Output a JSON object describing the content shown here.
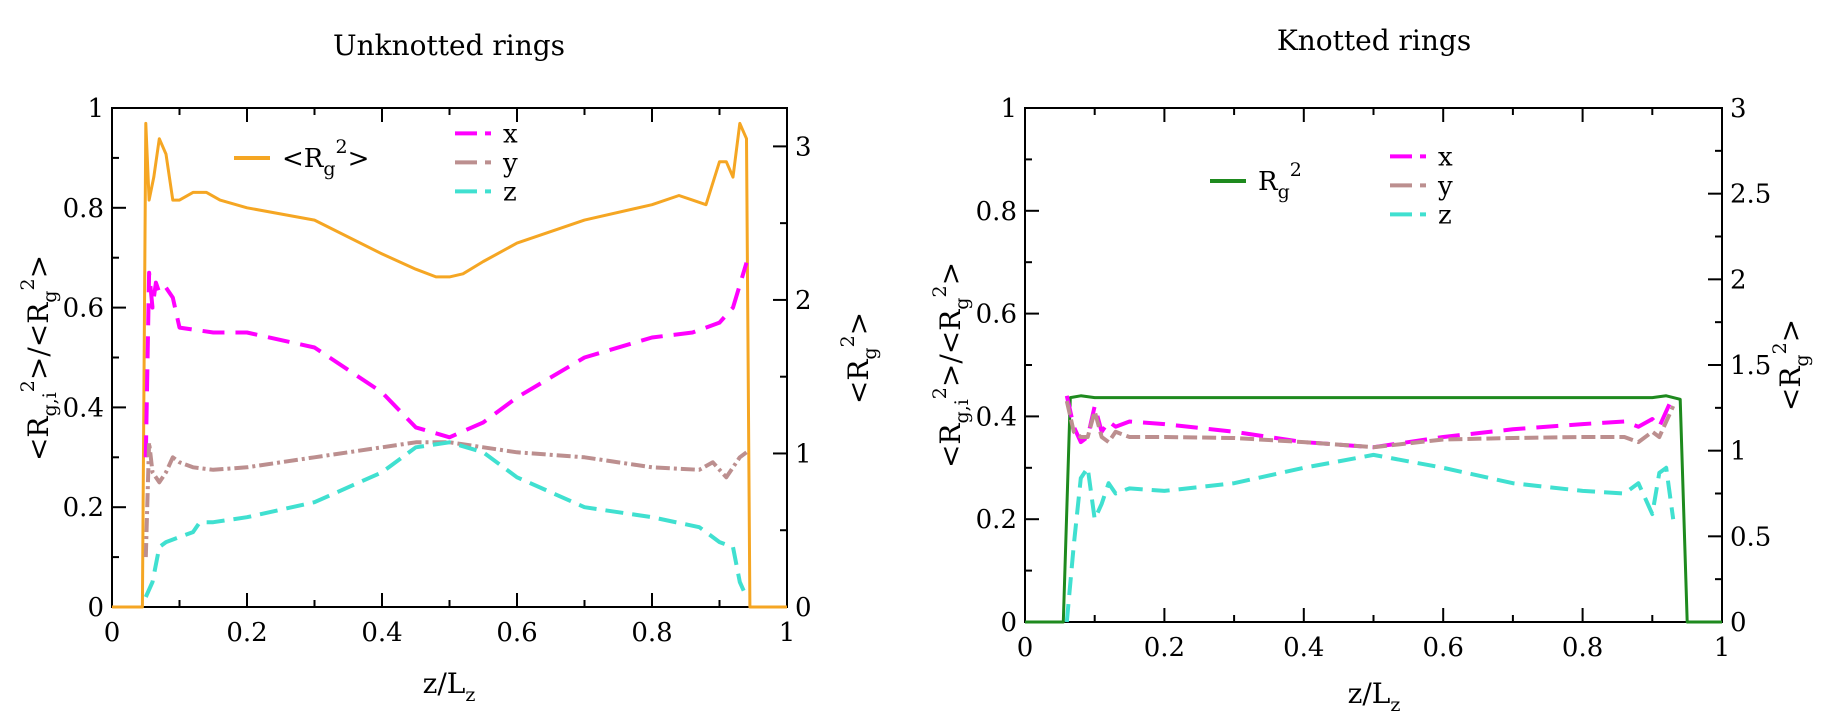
{
  "chart_data": [
    {
      "type": "line",
      "title": "Unknotted rings",
      "xlabel": {
        "text": "z/L",
        "sub": "z"
      },
      "ylabel": {
        "pre": "<R",
        "sub": "g,i",
        "sup": "2",
        "mid": ">/<R",
        "sub2": "g",
        "sup2": "2",
        "post": ">"
      },
      "y2label": {
        "pre": "<R",
        "sub": "g",
        "sup": "2",
        "post": ">"
      },
      "xlim": [
        0,
        1
      ],
      "ylim": [
        0,
        1
      ],
      "y2lim": [
        0,
        3.25
      ],
      "xticks": [
        "0",
        "0.2",
        "0.4",
        "0.6",
        "0.8",
        "1"
      ],
      "yticks": [
        "0",
        "0.2",
        "0.4",
        "0.6",
        "0.8",
        "1"
      ],
      "y2ticks": [
        "0",
        "1",
        "2",
        "3"
      ],
      "legend": [
        {
          "series": "Rg2",
          "pre": "<R",
          "sub": "g",
          "sup": "2",
          "post": ">"
        },
        {
          "series": "x",
          "text": "x"
        },
        {
          "series": "y",
          "text": "y"
        },
        {
          "series": "z",
          "text": "z"
        }
      ],
      "series": [
        {
          "name": "Rg2",
          "axis": "right",
          "color": "#f5a623",
          "dash": "",
          "x": [
            0,
            0.045,
            0.05,
            0.055,
            0.062,
            0.07,
            0.08,
            0.09,
            0.1,
            0.12,
            0.14,
            0.16,
            0.2,
            0.3,
            0.4,
            0.45,
            0.48,
            0.5,
            0.52,
            0.55,
            0.6,
            0.7,
            0.8,
            0.84,
            0.86,
            0.88,
            0.9,
            0.91,
            0.92,
            0.93,
            0.94,
            0.945,
            0.95,
            1
          ],
          "y": [
            0,
            0,
            3.15,
            2.65,
            2.8,
            3.05,
            2.95,
            2.65,
            2.65,
            2.7,
            2.7,
            2.65,
            2.6,
            2.52,
            2.3,
            2.2,
            2.15,
            2.15,
            2.17,
            2.25,
            2.37,
            2.52,
            2.62,
            2.68,
            2.65,
            2.62,
            2.9,
            2.9,
            2.8,
            3.15,
            3.05,
            0,
            0,
            0
          ]
        },
        {
          "name": "x",
          "axis": "left",
          "color": "#ff00ff",
          "dash": "22 11",
          "x": [
            0.05,
            0.055,
            0.06,
            0.065,
            0.07,
            0.08,
            0.09,
            0.1,
            0.15,
            0.2,
            0.3,
            0.4,
            0.45,
            0.5,
            0.55,
            0.6,
            0.7,
            0.8,
            0.86,
            0.9,
            0.92,
            0.94
          ],
          "y": [
            0.3,
            0.67,
            0.6,
            0.65,
            0.63,
            0.64,
            0.62,
            0.56,
            0.55,
            0.55,
            0.52,
            0.43,
            0.36,
            0.34,
            0.37,
            0.42,
            0.5,
            0.54,
            0.55,
            0.57,
            0.6,
            0.69
          ]
        },
        {
          "name": "y",
          "axis": "left",
          "color": "#bc8f8f",
          "dash": "14 4 3 4",
          "x": [
            0.05,
            0.055,
            0.06,
            0.07,
            0.08,
            0.09,
            0.1,
            0.12,
            0.15,
            0.2,
            0.3,
            0.4,
            0.45,
            0.5,
            0.55,
            0.6,
            0.7,
            0.8,
            0.87,
            0.89,
            0.91,
            0.93,
            0.94
          ],
          "y": [
            0.1,
            0.33,
            0.27,
            0.25,
            0.27,
            0.3,
            0.29,
            0.28,
            0.275,
            0.28,
            0.3,
            0.32,
            0.33,
            0.33,
            0.32,
            0.31,
            0.3,
            0.28,
            0.275,
            0.29,
            0.26,
            0.3,
            0.31
          ]
        },
        {
          "name": "z",
          "axis": "left",
          "color": "#40e0d0",
          "dash": "18 9",
          "x": [
            0.05,
            0.06,
            0.07,
            0.08,
            0.1,
            0.12,
            0.13,
            0.15,
            0.2,
            0.3,
            0.4,
            0.45,
            0.5,
            0.55,
            0.6,
            0.7,
            0.8,
            0.87,
            0.9,
            0.92,
            0.93,
            0.94
          ],
          "y": [
            0.02,
            0.05,
            0.12,
            0.13,
            0.14,
            0.15,
            0.17,
            0.17,
            0.18,
            0.21,
            0.27,
            0.32,
            0.33,
            0.31,
            0.26,
            0.2,
            0.18,
            0.16,
            0.13,
            0.12,
            0.05,
            0.02
          ]
        }
      ]
    },
    {
      "type": "line",
      "title": "Knotted rings",
      "xlabel": {
        "text": "z/L",
        "sub": "z"
      },
      "ylabel": {
        "pre": "<R",
        "sub": "g,i",
        "sup": "2",
        "mid": ">/<R",
        "sub2": "g",
        "sup2": "2",
        "post": ">"
      },
      "y2label": {
        "pre": "<R",
        "sub": "g",
        "sup": "2",
        "post": ">"
      },
      "xlim": [
        0,
        1
      ],
      "ylim": [
        0,
        1
      ],
      "y2lim": [
        0,
        3
      ],
      "xticks": [
        "0",
        "0.2",
        "0.4",
        "0.6",
        "0.8",
        "1"
      ],
      "yticks": [
        "0",
        "0.2",
        "0.4",
        "0.6",
        "0.8",
        "1"
      ],
      "y2ticks": [
        "0",
        "0.5",
        "1",
        "1.5",
        "2",
        "2.5",
        "3"
      ],
      "legend": [
        {
          "series": "Rg2",
          "pre": "R",
          "sub": "g",
          "sup": "2",
          "post": ""
        },
        {
          "series": "x",
          "text": "x"
        },
        {
          "series": "y",
          "text": "y"
        },
        {
          "series": "z",
          "text": "z"
        }
      ],
      "series": [
        {
          "name": "Rg2",
          "axis": "right",
          "color": "#1e8a1e",
          "dash": "",
          "x": [
            0,
            0.055,
            0.065,
            0.08,
            0.1,
            0.3,
            0.5,
            0.7,
            0.9,
            0.92,
            0.94,
            0.95,
            1
          ],
          "y": [
            0,
            0,
            1.31,
            1.32,
            1.31,
            1.31,
            1.31,
            1.31,
            1.31,
            1.32,
            1.3,
            0,
            0
          ]
        },
        {
          "name": "x",
          "axis": "left",
          "color": "#ff00ff",
          "dash": "22 11",
          "x": [
            0.06,
            0.07,
            0.08,
            0.09,
            0.1,
            0.11,
            0.12,
            0.13,
            0.15,
            0.2,
            0.3,
            0.4,
            0.5,
            0.6,
            0.7,
            0.8,
            0.86,
            0.88,
            0.9,
            0.91,
            0.93
          ],
          "y": [
            0.44,
            0.38,
            0.35,
            0.36,
            0.42,
            0.37,
            0.39,
            0.38,
            0.39,
            0.385,
            0.37,
            0.35,
            0.34,
            0.36,
            0.375,
            0.385,
            0.39,
            0.38,
            0.395,
            0.38,
            0.44
          ]
        },
        {
          "name": "y",
          "axis": "left",
          "color": "#bc8f8f",
          "dash": "14 5",
          "x": [
            0.06,
            0.07,
            0.08,
            0.09,
            0.1,
            0.11,
            0.12,
            0.13,
            0.15,
            0.2,
            0.3,
            0.4,
            0.5,
            0.6,
            0.7,
            0.8,
            0.86,
            0.88,
            0.9,
            0.91,
            0.93
          ],
          "y": [
            0.43,
            0.37,
            0.36,
            0.36,
            0.41,
            0.36,
            0.35,
            0.37,
            0.36,
            0.36,
            0.358,
            0.35,
            0.34,
            0.355,
            0.358,
            0.36,
            0.36,
            0.35,
            0.37,
            0.36,
            0.42
          ]
        },
        {
          "name": "z",
          "axis": "left",
          "color": "#40e0d0",
          "dash": "18 9",
          "x": [
            0.06,
            0.07,
            0.08,
            0.09,
            0.1,
            0.11,
            0.12,
            0.13,
            0.15,
            0.2,
            0.3,
            0.4,
            0.5,
            0.6,
            0.7,
            0.8,
            0.86,
            0.88,
            0.9,
            0.91,
            0.92,
            0.93
          ],
          "y": [
            0.0,
            0.15,
            0.28,
            0.3,
            0.2,
            0.23,
            0.27,
            0.25,
            0.26,
            0.255,
            0.27,
            0.3,
            0.325,
            0.3,
            0.27,
            0.255,
            0.25,
            0.27,
            0.21,
            0.29,
            0.3,
            0.2
          ]
        }
      ]
    }
  ]
}
